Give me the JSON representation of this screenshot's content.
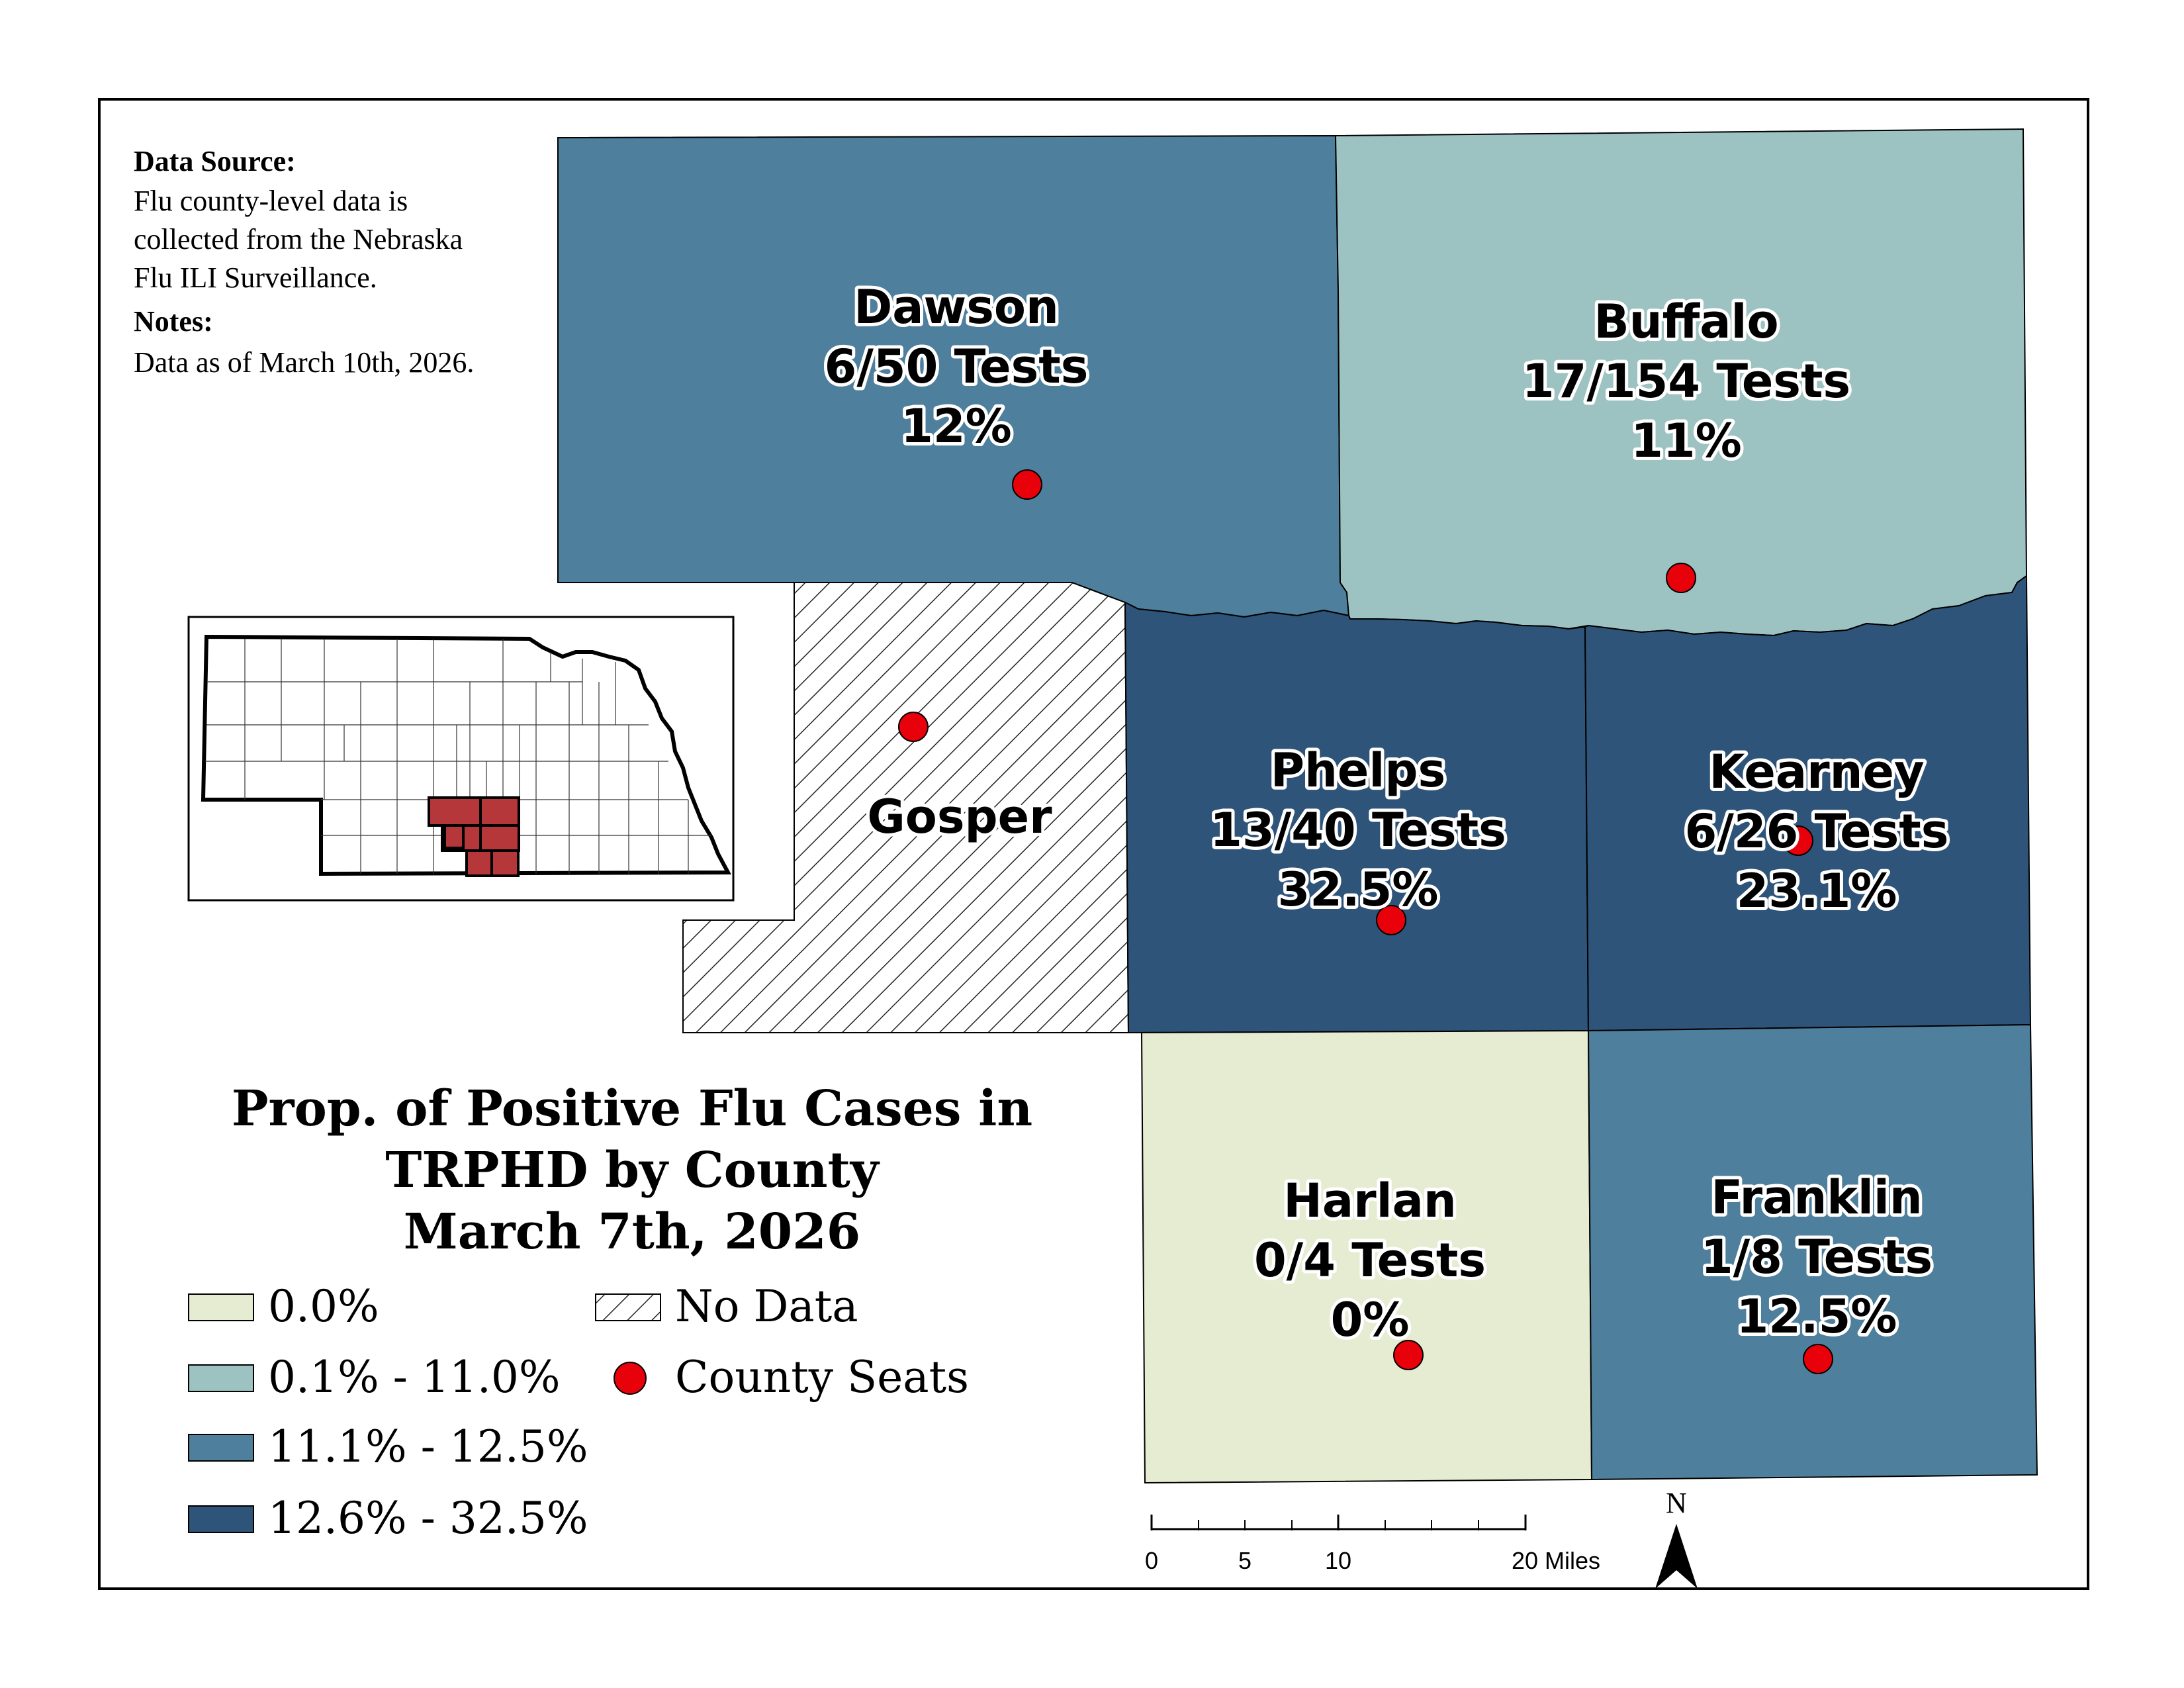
{
  "source_box": {
    "heading": "Data Source:",
    "lines": [
      "Flu county-level data is",
      "collected from the Nebraska",
      "Flu ILI Surveillance."
    ],
    "notes_heading": "Notes:",
    "notes": "Data as of March 10th, 2026."
  },
  "title": {
    "line1": "Prop. of Positive Flu Cases in",
    "line2": "TRPHD by County",
    "line3": "March 7th, 2026"
  },
  "counties": {
    "dawson": {
      "name": "Dawson",
      "tests": "6/50 Tests",
      "percent": "12%",
      "color": "#4e7f9c"
    },
    "buffalo": {
      "name": "Buffalo",
      "tests": "17/154 Tests",
      "percent": "11%",
      "color": "#9cc3c1"
    },
    "gosper": {
      "name": "Gosper",
      "tests": "",
      "percent": "",
      "color": "#ffffff"
    },
    "phelps": {
      "name": "Phelps",
      "tests": "13/40 Tests",
      "percent": "32.5%",
      "color": "#2f5479"
    },
    "kearney": {
      "name": "Kearney",
      "tests": "6/26 Tests",
      "percent": "23.1%",
      "color": "#2f5479"
    },
    "harlan": {
      "name": "Harlan",
      "tests": "0/4 Tests",
      "percent": "0%",
      "color": "#e6ecd2"
    },
    "franklin": {
      "name": "Franklin",
      "tests": "1/8 Tests",
      "percent": "12.5%",
      "color": "#4e7f9c"
    }
  },
  "legend": {
    "classes": [
      {
        "label": "0.0%",
        "color": "#e6ecd2"
      },
      {
        "label": "0.1% - 11.0%",
        "color": "#9cc3c1"
      },
      {
        "label": "11.1% - 12.5%",
        "color": "#4e7f9c"
      },
      {
        "label": "12.6% - 32.5%",
        "color": "#2f5479"
      }
    ],
    "no_data": "No Data",
    "county_seats": "County Seats",
    "seat_color": "#e8000b"
  },
  "scale_bar": {
    "ticks": [
      "0",
      "5",
      "10"
    ],
    "end_label": "20 Miles"
  },
  "north_arrow": {
    "label": "N"
  }
}
